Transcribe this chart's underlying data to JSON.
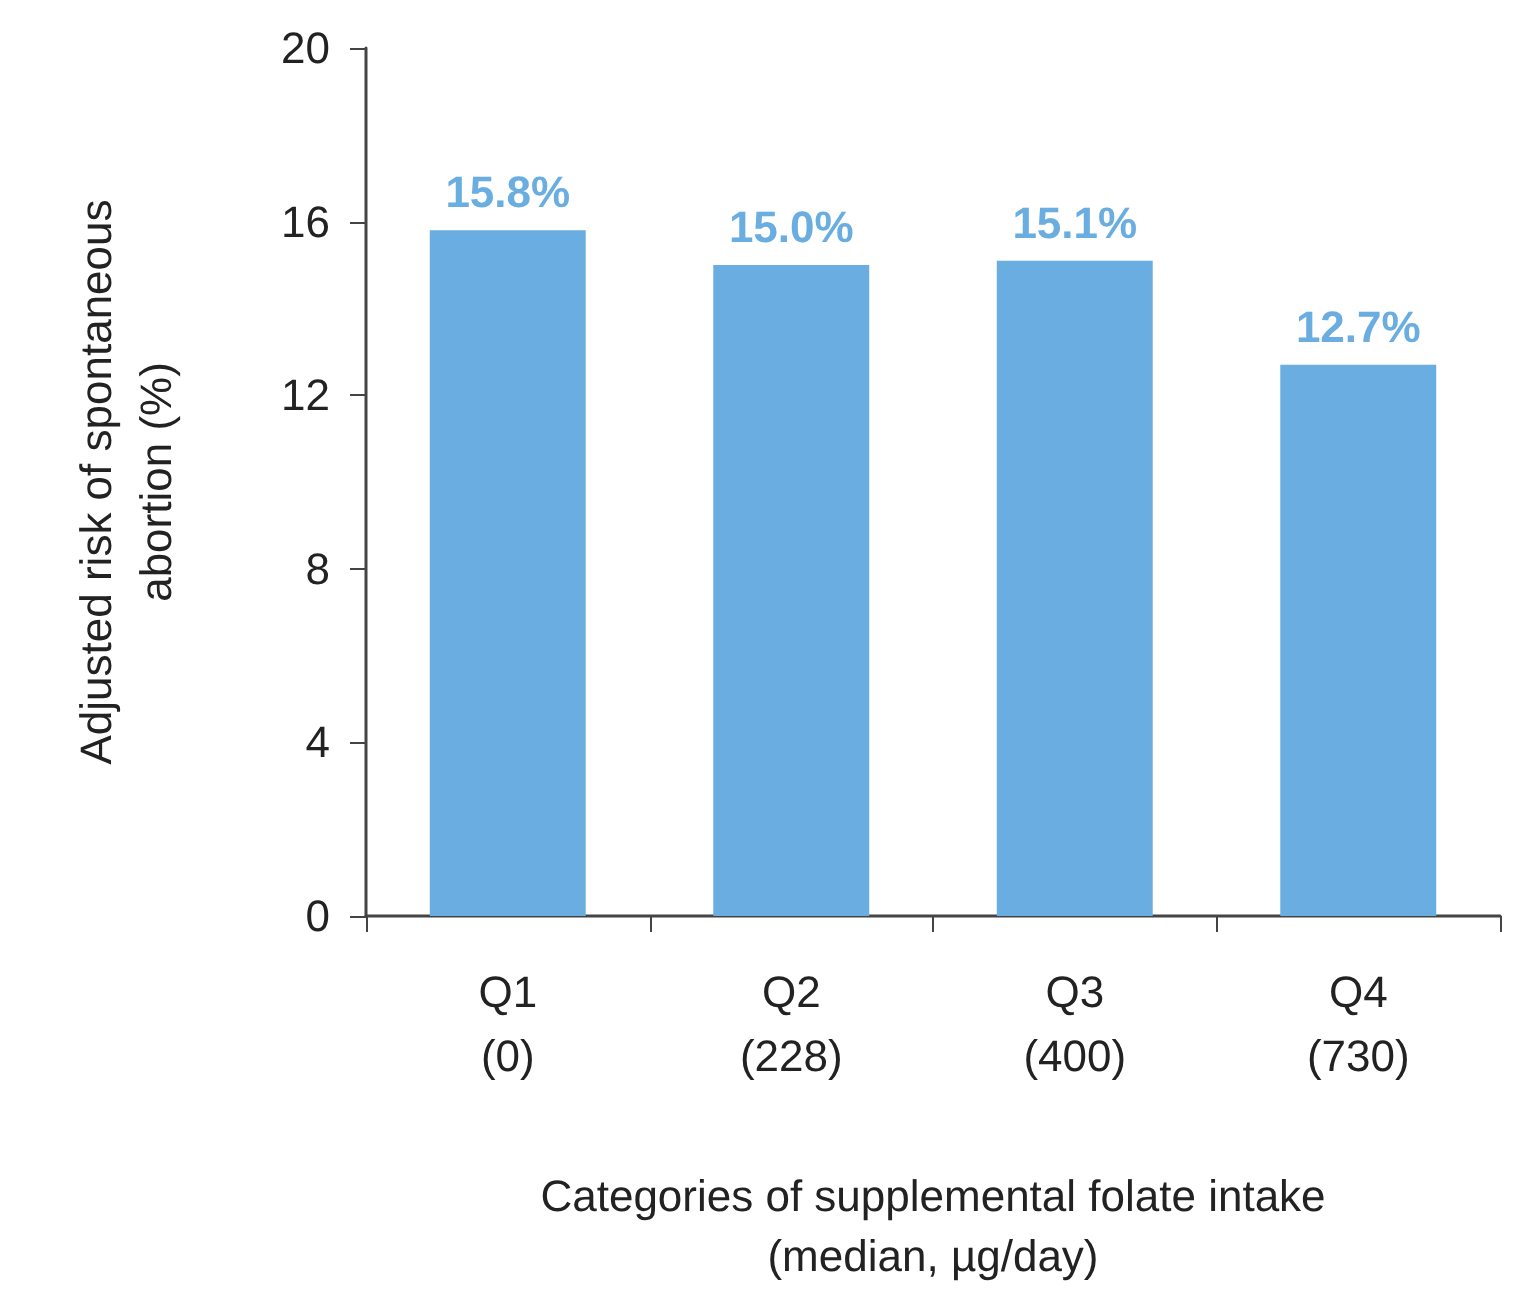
{
  "chart_data": {
    "type": "bar",
    "categories": [
      "Q1\n(0)",
      "Q2\n(228)",
      "Q3\n(400)",
      "Q4\n(730)"
    ],
    "values": [
      15.8,
      15.0,
      15.1,
      12.7
    ],
    "value_labels": [
      "15.8%",
      "15.0%",
      "15.1%",
      "12.7%"
    ],
    "color": "#6aade0",
    "ylim": [
      0,
      20
    ],
    "yticks": [
      0,
      4,
      8,
      12,
      16,
      20
    ],
    "ylabel": "Adjusted risk of spontaneous\nabortion (%)",
    "xlabel": "Categories of supplemental folate intake\n(median, µg/day)"
  }
}
